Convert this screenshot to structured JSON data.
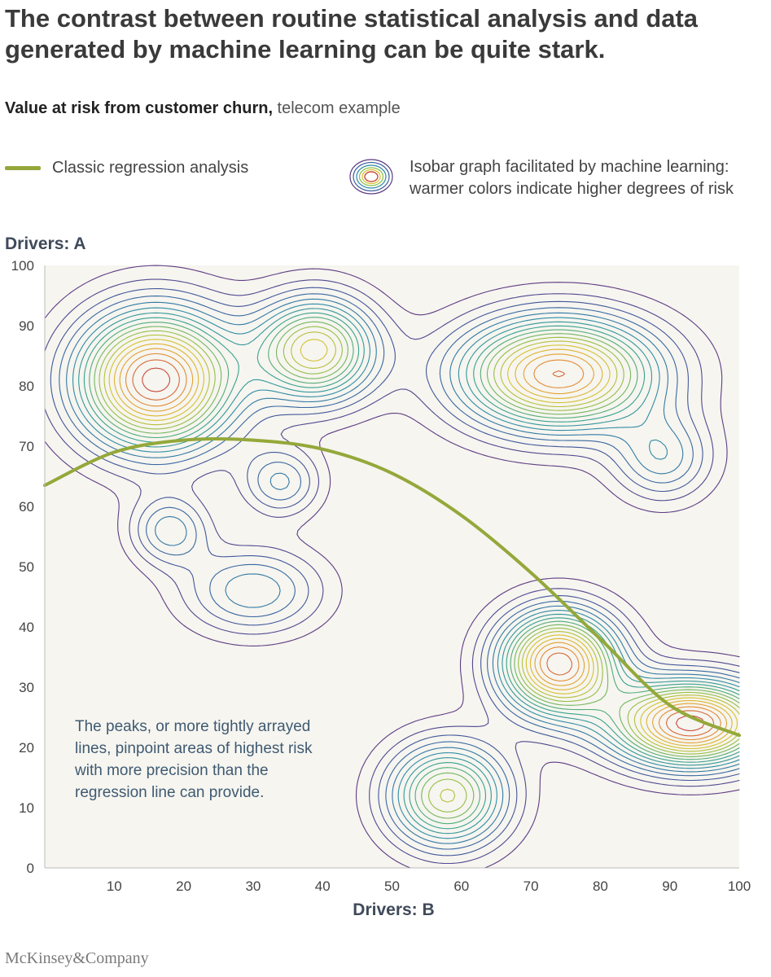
{
  "header": {
    "title": "The contrast between routine statistical analysis and data generated by machine learning can be quite stark.",
    "subtitle_bold": "Value at risk from customer churn,",
    "subtitle_light": " telecom example"
  },
  "legend": {
    "regression_label": "Classic regression analysis",
    "isobar_label": "Isobar graph facilitated by machine learning: warmer colors indicate higher degrees of risk",
    "regression_color": "#94a83a"
  },
  "annotation": "The peaks, or more tightly arrayed lines, pinpoint areas of highest risk with more precision than the regression line can provide.",
  "footer": {
    "brand": "McKinsey&Company"
  },
  "colors": {
    "plot_background": "#f6f5f0",
    "regression": "#94a83a",
    "contour_scale": [
      "#5e3c83",
      "#3d5e9e",
      "#2f8aa6",
      "#3aa58b",
      "#8cbf4a",
      "#d8c22e",
      "#e79a33",
      "#c94a3e"
    ]
  },
  "chart_data": {
    "type": "contour",
    "xlabel": "Drivers: B",
    "ylabel": "Drivers: A",
    "xlim": [
      0,
      100
    ],
    "ylim": [
      0,
      100
    ],
    "x_ticks": [
      10,
      20,
      30,
      40,
      50,
      60,
      70,
      80,
      90,
      100
    ],
    "y_ticks": [
      0,
      10,
      20,
      30,
      40,
      50,
      60,
      70,
      80,
      90,
      100
    ],
    "regression_line": {
      "name": "Classic regression analysis",
      "x": [
        0,
        10,
        20,
        30,
        40,
        50,
        60,
        70,
        80,
        90,
        100
      ],
      "y": [
        63.5,
        69,
        71,
        71,
        69.5,
        65.5,
        58.5,
        49,
        38,
        27,
        22
      ]
    },
    "risk_peaks": [
      {
        "x": 16,
        "y": 81,
        "sx": 8,
        "sy": 8,
        "intensity": 1.0
      },
      {
        "x": 39,
        "y": 86,
        "sx": 6,
        "sy": 6,
        "intensity": 0.72
      },
      {
        "x": 74,
        "y": 82,
        "sx": 10,
        "sy": 6.5,
        "intensity": 0.92
      },
      {
        "x": 74,
        "y": 34,
        "sx": 6,
        "sy": 6,
        "intensity": 0.95
      },
      {
        "x": 93,
        "y": 24,
        "sx": 8,
        "sy": 5,
        "intensity": 1.0
      },
      {
        "x": 58,
        "y": 12,
        "sx": 6,
        "sy": 6,
        "intensity": 0.66
      },
      {
        "x": 30,
        "y": 46,
        "sx": 7,
        "sy": 5,
        "intensity": 0.32
      },
      {
        "x": 18,
        "y": 56,
        "sx": 4,
        "sy": 4,
        "intensity": 0.3
      },
      {
        "x": 34,
        "y": 64,
        "sx": 4,
        "sy": 4,
        "intensity": 0.28
      },
      {
        "x": 89,
        "y": 68,
        "sx": 5,
        "sy": 5,
        "intensity": 0.3
      }
    ]
  }
}
